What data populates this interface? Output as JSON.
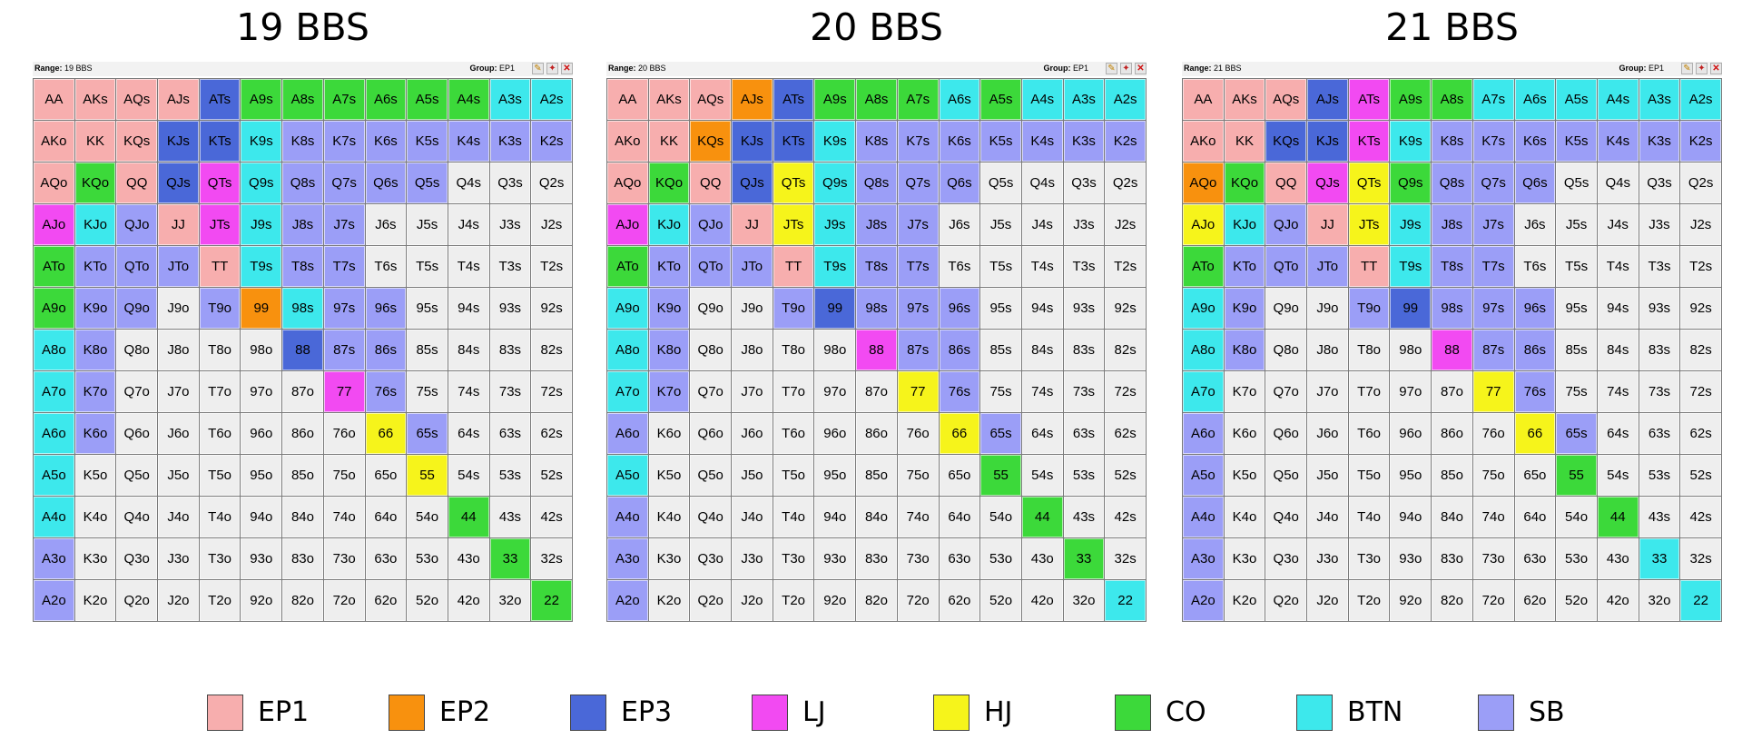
{
  "colors": {
    "EP1": "#f7aeae",
    "EP2": "#f8910e",
    "EP3": "#4a68d8",
    "LJ": "#f24af2",
    "HJ": "#f6f41b",
    "CO": "#3cd93a",
    "BTN": "#3de8ec",
    "SB": "#9b9ef7",
    "none": "#eeeeee"
  },
  "legend": [
    {
      "label": "EP1",
      "color": "#f7aeae"
    },
    {
      "label": "EP2",
      "color": "#f8910e"
    },
    {
      "label": "EP3",
      "color": "#4a68d8"
    },
    {
      "label": "LJ",
      "color": "#f24af2"
    },
    {
      "label": "HJ",
      "color": "#f6f41b"
    },
    {
      "label": "CO",
      "color": "#3cd93a"
    },
    {
      "label": "BTN",
      "color": "#3de8ec"
    },
    {
      "label": "SB",
      "color": "#9b9ef7"
    }
  ],
  "panels": [
    {
      "title": "19 BBS",
      "range_label": "Range:",
      "range_value": "19 BBS",
      "group_label": "Group:",
      "group_value": "EP1",
      "assignments": [
        "EP1 EP1 EP1 EP1 EP3 CO CO CO CO CO CO BTN BTN",
        "EP1 EP1 EP1 EP3 EP3 BTN SB SB SB SB SB SB SB",
        "EP1 CO EP1 EP3 LJ BTN SB SB SB SB - - -",
        "LJ BTN SB EP1 LJ BTN SB SB - - - - -",
        "CO SB SB SB EP1 BTN SB SB - - - - -",
        "CO SB SB - SB EP2 BTN SB SB - - - -",
        "BTN SB - - - - EP3 SB SB - - - -",
        "BTN SB - - - - - LJ SB - - - -",
        "BTN SB - - - - - - HJ SB - - -",
        "BTN - - - - - - - - HJ - - -",
        "BTN - - - - - - - - - CO - -",
        "SB - - - - - - - - - - CO -",
        "SB - - - - - - - - - - - CO"
      ]
    },
    {
      "title": "20 BBS",
      "range_label": "Range:",
      "range_value": "20 BBS",
      "group_label": "Group:",
      "group_value": "EP1",
      "assignments": [
        "EP1 EP1 EP1 EP2 EP3 CO CO CO BTN CO BTN BTN BTN",
        "EP1 EP1 EP2 EP3 EP3 BTN SB SB SB SB SB SB SB",
        "EP1 CO EP1 EP3 HJ BTN SB SB SB - - - -",
        "LJ BTN SB EP1 HJ BTN SB SB - - - - -",
        "CO SB SB SB EP1 BTN SB SB - - - - -",
        "BTN SB - - SB EP3 SB SB SB - - - -",
        "BTN SB - - - - LJ SB SB - - - -",
        "BTN SB - - - - - HJ SB - - - -",
        "SB - - - - - - - HJ SB - - -",
        "BTN - - - - - - - - CO - - -",
        "SB - - - - - - - - - CO - -",
        "SB - - - - - - - - - - CO -",
        "SB - - - - - - - - - - - BTN"
      ]
    },
    {
      "title": "21 BBS",
      "range_label": "Range:",
      "range_value": "21 BBS",
      "group_label": "Group:",
      "group_value": "EP1",
      "assignments": [
        "EP1 EP1 EP1 EP3 LJ CO CO BTN BTN BTN BTN BTN BTN",
        "EP1 EP1 EP3 EP3 LJ BTN SB SB SB SB SB SB SB",
        "EP2 CO EP1 LJ HJ CO SB SB SB - - - -",
        "HJ BTN SB EP1 HJ BTN SB SB - - - - -",
        "CO SB SB SB EP1 BTN SB SB - - - - -",
        "BTN SB - - SB EP3 SB SB SB - - - -",
        "BTN SB - - - - LJ SB SB - - - -",
        "BTN - - - - - - HJ SB - - - -",
        "SB - - - - - - - HJ SB - - -",
        "SB - - - - - - - - CO - - -",
        "SB - - - - - - - - - CO - -",
        "SB - - - - - - - - - - BTN -",
        "SB - - - - - - - - - - - BTN"
      ]
    }
  ],
  "ranks": [
    "A",
    "K",
    "Q",
    "J",
    "T",
    "9",
    "8",
    "7",
    "6",
    "5",
    "4",
    "3",
    "2"
  ],
  "suited_suffix": "s",
  "offsuit_suffix": "o",
  "toolbar_icons": [
    "edit-icon",
    "brush-icon",
    "close-icon"
  ]
}
